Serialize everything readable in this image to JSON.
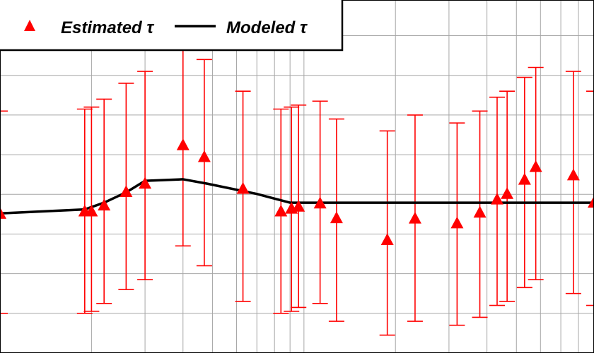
{
  "chart_data": {
    "type": "scatter",
    "xscale": "log",
    "grid": true,
    "legend_position": "top-left",
    "legend": [
      {
        "label": "Estimated τ",
        "marker": "triangle",
        "color": "#FF0000"
      },
      {
        "label": "Modeled τ",
        "marker": "line",
        "color": "#000000"
      }
    ],
    "series": [
      {
        "name": "Estimated τ",
        "kind": "points-with-errorbars",
        "x": [
          1.0,
          1.9,
          2.0,
          2.2,
          2.6,
          3.0,
          4.0,
          4.7,
          6.3,
          8.4,
          9.1,
          9.6,
          11.3,
          12.8,
          18.8,
          23.2,
          31.9,
          37.9,
          43.2,
          46.6,
          53.2,
          57.9,
          77.0,
          90.0
        ],
        "y": [
          3.52,
          3.58,
          3.58,
          3.73,
          4.07,
          4.28,
          5.25,
          4.95,
          4.15,
          3.58,
          3.65,
          3.7,
          3.78,
          3.41,
          2.86,
          3.4,
          3.28,
          3.55,
          3.88,
          4.02,
          4.38,
          4.7,
          4.49,
          3.8
        ],
        "ylow": [
          1.0,
          1.0,
          1.05,
          1.25,
          1.6,
          1.85,
          2.7,
          2.2,
          1.3,
          1.0,
          1.05,
          1.15,
          1.25,
          0.8,
          0.45,
          0.8,
          0.7,
          0.9,
          1.2,
          1.3,
          1.65,
          1.85,
          1.5,
          1.2
        ],
        "yhigh": [
          6.1,
          6.15,
          6.2,
          6.4,
          6.8,
          7.1,
          7.8,
          7.4,
          6.6,
          6.15,
          6.2,
          6.25,
          6.35,
          5.9,
          5.6,
          6.0,
          5.8,
          6.1,
          6.45,
          6.6,
          6.95,
          7.2,
          7.1,
          6.6
        ]
      },
      {
        "name": "Modeled τ",
        "kind": "line",
        "x": [
          1.0,
          1.9,
          2.2,
          2.6,
          3.0,
          4.0,
          4.8,
          7.0,
          9.0,
          90.0
        ],
        "y": [
          3.52,
          3.62,
          3.79,
          4.05,
          4.34,
          4.38,
          4.27,
          4.01,
          3.79,
          3.79
        ]
      }
    ],
    "xlim": [
      1.0,
      90.0
    ],
    "ylim": [
      0.0,
      8.9
    ]
  }
}
